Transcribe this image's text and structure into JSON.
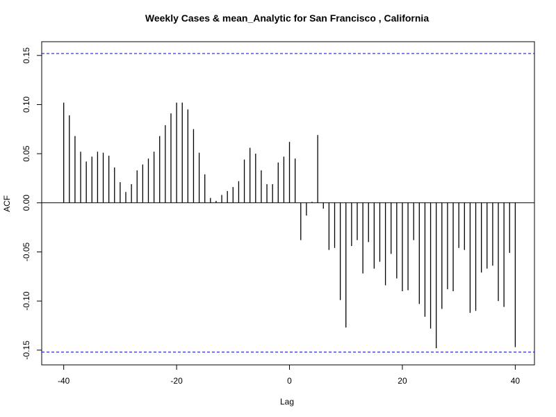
{
  "chart_data": {
    "type": "bar",
    "title": "Weekly Cases & mean_Analytic for San Francisco , California",
    "xlabel": "Lag",
    "ylabel": "ACF",
    "xlim": [
      -43.9,
      43.4
    ],
    "ylim": [
      -0.165,
      0.164
    ],
    "x_ticks": [
      -40,
      -20,
      0,
      20,
      40
    ],
    "x_tick_labels": [
      "-40",
      "-20",
      "0",
      "20",
      "40"
    ],
    "y_ticks": [
      -0.15,
      -0.1,
      -0.05,
      0.0,
      0.05,
      0.1,
      0.15
    ],
    "y_tick_labels": [
      "-0.15",
      "-0.10",
      "-0.05",
      "0.00",
      "0.05",
      "0.10",
      "0.15"
    ],
    "confidence_limit": 0.152,
    "confidence_color": "#0000cc",
    "bar_color": "#000000",
    "grid": false,
    "lags": [
      -40,
      -39,
      -38,
      -37,
      -36,
      -35,
      -34,
      -33,
      -32,
      -31,
      -30,
      -29,
      -28,
      -27,
      -26,
      -25,
      -24,
      -23,
      -22,
      -21,
      -20,
      -19,
      -18,
      -17,
      -16,
      -15,
      -14,
      -13,
      -12,
      -11,
      -10,
      -9,
      -8,
      -7,
      -6,
      -5,
      -4,
      -3,
      -2,
      -1,
      0,
      1,
      2,
      3,
      4,
      5,
      6,
      7,
      8,
      9,
      10,
      11,
      12,
      13,
      14,
      15,
      16,
      17,
      18,
      19,
      20,
      21,
      22,
      23,
      24,
      25,
      26,
      27,
      28,
      29,
      30,
      31,
      32,
      33,
      34,
      35,
      36,
      37,
      38,
      39,
      40
    ],
    "acf": [
      0.102,
      0.089,
      0.068,
      0.052,
      0.042,
      0.047,
      0.052,
      0.051,
      0.048,
      0.036,
      0.021,
      0.011,
      0.019,
      0.033,
      0.039,
      0.045,
      0.052,
      0.068,
      0.079,
      0.091,
      0.102,
      0.102,
      0.095,
      0.075,
      0.051,
      0.029,
      0.005,
      0.002,
      0.008,
      0.012,
      0.016,
      0.022,
      0.044,
      0.056,
      0.05,
      0.033,
      0.019,
      0.019,
      0.041,
      0.047,
      0.062,
      0.045,
      -0.038,
      -0.013,
      0.001,
      0.069,
      -0.006,
      -0.048,
      -0.046,
      -0.099,
      -0.127,
      -0.044,
      -0.038,
      -0.072,
      -0.04,
      -0.067,
      -0.06,
      -0.084,
      -0.052,
      -0.077,
      -0.09,
      -0.089,
      -0.038,
      -0.103,
      -0.116,
      -0.128,
      -0.148,
      -0.108,
      -0.088,
      -0.09,
      -0.046,
      -0.048,
      -0.112,
      -0.11,
      -0.071,
      -0.067,
      -0.064,
      -0.1,
      -0.106,
      -0.051,
      -0.147
    ]
  }
}
